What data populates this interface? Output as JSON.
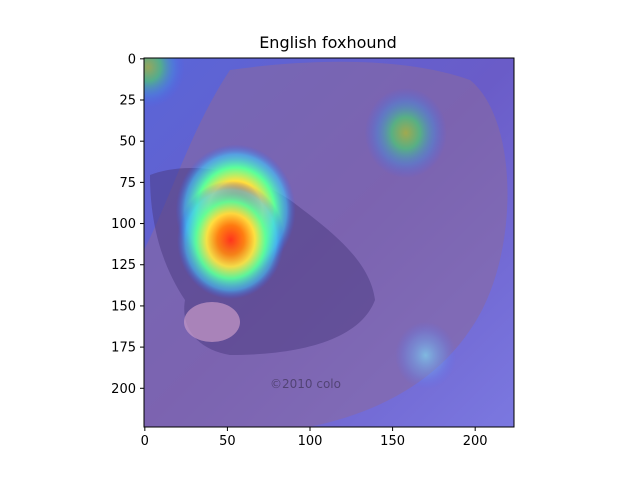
{
  "chart_data": {
    "type": "heatmap",
    "title": "English foxhound",
    "xlabel": "",
    "ylabel": "",
    "x_range": [
      -0.5,
      223.5
    ],
    "y_range": [
      223.5,
      -0.5
    ],
    "x_ticks": [
      0,
      50,
      100,
      150,
      200
    ],
    "y_ticks": [
      0,
      25,
      50,
      75,
      100,
      125,
      150,
      175,
      200
    ],
    "colormap": "jet",
    "grid": false,
    "image_content": "dog photograph overlaid with a class activation heatmap",
    "watermark": "©2010 colo",
    "hotspots": [
      {
        "x": 55,
        "y": 92,
        "intensity": 1.0
      },
      {
        "x": 52,
        "y": 110,
        "intensity": 0.85
      },
      {
        "x": 158,
        "y": 45,
        "intensity": 0.55
      },
      {
        "x": 170,
        "y": 180,
        "intensity": 0.3
      },
      {
        "x": 2,
        "y": 5,
        "intensity": 0.45
      }
    ]
  }
}
